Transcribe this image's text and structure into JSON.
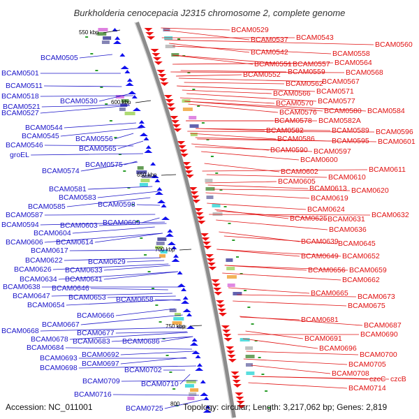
{
  "title": "Burkholderia cenocepacia J2315 chromosome 2, complete genome",
  "footer": {
    "accession": "Accession: NC_011001",
    "stats": "Topology: circular; Length: 3,217,062 bp; Genes: 2,819"
  },
  "kbp_marks": [
    "550 kbp",
    "600 kbp",
    "650 kbp",
    "700 kbp",
    "750 kbp",
    "800"
  ],
  "colors": {
    "left_labels": "#1a14c8",
    "right_labels": "#e01010",
    "backbone": "#8c8c8c"
  },
  "left_genes": [
    "BCAM0505",
    "BCAM0501",
    "BCAM0511",
    "BCAM0518",
    "BCAM0521",
    "BCAM0530",
    "BCAM0527",
    "BCAM0544",
    "BCAM0545",
    "BCAM0546",
    "groEL",
    "BCAM0556",
    "BCAM0565",
    "BCAM0575",
    "BCAM0574",
    "BCAM0581",
    "BCAM0583",
    "BCAM0585",
    "BCAM0598",
    "BCAM0587",
    "BCAM0594",
    "BCAM0603",
    "BCAM0609",
    "BCAM0604",
    "BCAM0606",
    "BCAM0614",
    "BCAM0617",
    "BCAM0622",
    "BCAM0629",
    "BCAM0626",
    "BCAM0633",
    "BCAM0634",
    "BCAM0641",
    "BCAM0638",
    "BCAM0646",
    "BCAM0647",
    "BCAM0653",
    "BCAM0658",
    "BCAM0654",
    "BCAM0666",
    "BCAM0667",
    "BCAM0668",
    "BCAM0677",
    "BCAM0678",
    "BCAM0683",
    "BCAM0686",
    "BCAM0684",
    "BCAM0692",
    "BCAM0693",
    "BCAM0697",
    "BCAM0698",
    "BCAM0702",
    "BCAM0709",
    "BCAM0710",
    "BCAM0716",
    "BCAM0725"
  ],
  "right_genes": [
    "BCAM0529",
    "BCAM0537",
    "BCAM0543",
    "BCAM0542",
    "BCAM0560",
    "BCAM0558",
    "BCAM0551",
    "BCAM0557",
    "BCAM0564",
    "BCAM0552",
    "BCAM0559",
    "BCAM0568",
    "BCAM0562",
    "BCAM0567",
    "BCAM0566",
    "BCAM0571",
    "BCAM0570",
    "BCAM0577",
    "BCAM0576",
    "BCAM0580",
    "BCAM0584",
    "BCAM0578",
    "BCAM0582A",
    "BCAM0582",
    "BCAM0589",
    "BCAM0596",
    "BCAM0586",
    "BCAM0595",
    "BCAM0601",
    "BCAM0590",
    "BCAM0597",
    "BCAM0600",
    "BCAM0611",
    "BCAM0602",
    "BCAM0610",
    "BCAM0605",
    "BCAM0613",
    "BCAM0620",
    "BCAM0619",
    "BCAM0624",
    "BCAM0632",
    "BCAM0625",
    "BCAM0631",
    "BCAM0636",
    "BCAM0639",
    "BCAM0645",
    "BCAM0649",
    "BCAM0652",
    "BCAM0656",
    "BCAM0659",
    "BCAM0662",
    "BCAM0665",
    "BCAM0673",
    "BCAM0675",
    "BCAM0681",
    "BCAM0687",
    "BCAM0690",
    "BCAM0691",
    "BCAM0696",
    "BCAM0700",
    "BCAM0705",
    "BCAM0708",
    "czcC",
    "czcB",
    "BCAM0714"
  ]
}
